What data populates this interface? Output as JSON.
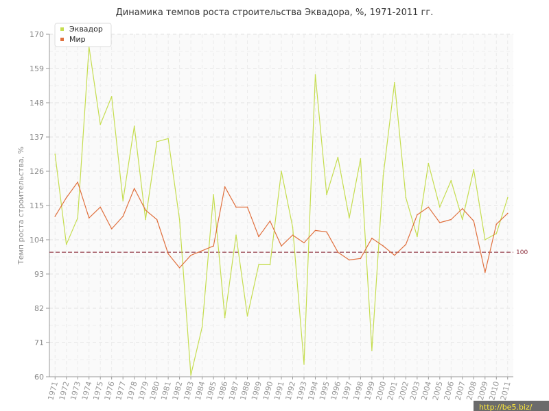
{
  "chart_data": {
    "type": "line",
    "title": "Динамика темпов роста строительства Эквадора, %, 1971-2011 гг.",
    "ylabel": "Темп роста строительства, %",
    "xlabel": "",
    "ylim": [
      60,
      170
    ],
    "yticks": [
      60,
      71,
      82,
      93,
      104,
      115,
      126,
      137,
      148,
      159,
      170
    ],
    "grid": true,
    "legend_position": "top-left",
    "reference_line": {
      "value": 100,
      "label": "100",
      "color": "#8b2c3a"
    },
    "x": [
      "1971",
      "1972",
      "1973",
      "1974",
      "1975",
      "1976",
      "1977",
      "1978",
      "1979",
      "1980",
      "1981",
      "1982",
      "1983",
      "1984",
      "1985",
      "1986",
      "1987",
      "1988",
      "1989",
      "1990",
      "1991",
      "1992",
      "1993",
      "1994",
      "1995",
      "1996",
      "1997",
      "1998",
      "1999",
      "2000",
      "2001",
      "2002",
      "2003",
      "2004",
      "2005",
      "2006",
      "2007",
      "2008",
      "2009",
      "2010",
      "2011"
    ],
    "series": [
      {
        "name": "Эквадор",
        "color": "#c5dd4f",
        "values": [
          131.5,
          102.5,
          111,
          166,
          141,
          150,
          116.5,
          140.5,
          110.5,
          135.5,
          136.5,
          110.5,
          60.5,
          76,
          118.5,
          79,
          105.5,
          79.5,
          96,
          96,
          126,
          108,
          64,
          157,
          118.5,
          130.5,
          111,
          130,
          68.5,
          124.5,
          154.5,
          117.5,
          105,
          128.5,
          114.5,
          123,
          110.5,
          126.5,
          104,
          106,
          117.5
        ]
      },
      {
        "name": "Мир",
        "color": "#e0703e",
        "values": [
          111.5,
          117.5,
          122.5,
          111,
          114.5,
          107.5,
          111.5,
          120.5,
          113.5,
          110.5,
          99.5,
          95,
          99,
          100.5,
          102,
          121,
          114.5,
          114.5,
          105,
          110,
          102,
          105.5,
          103,
          107,
          106.5,
          100,
          97.5,
          98,
          104.5,
          102,
          99,
          102.5,
          112,
          114.5,
          109.5,
          110.5,
          114,
          110,
          93.5,
          109,
          112.5
        ]
      }
    ]
  },
  "watermark": "http://be5.biz/"
}
